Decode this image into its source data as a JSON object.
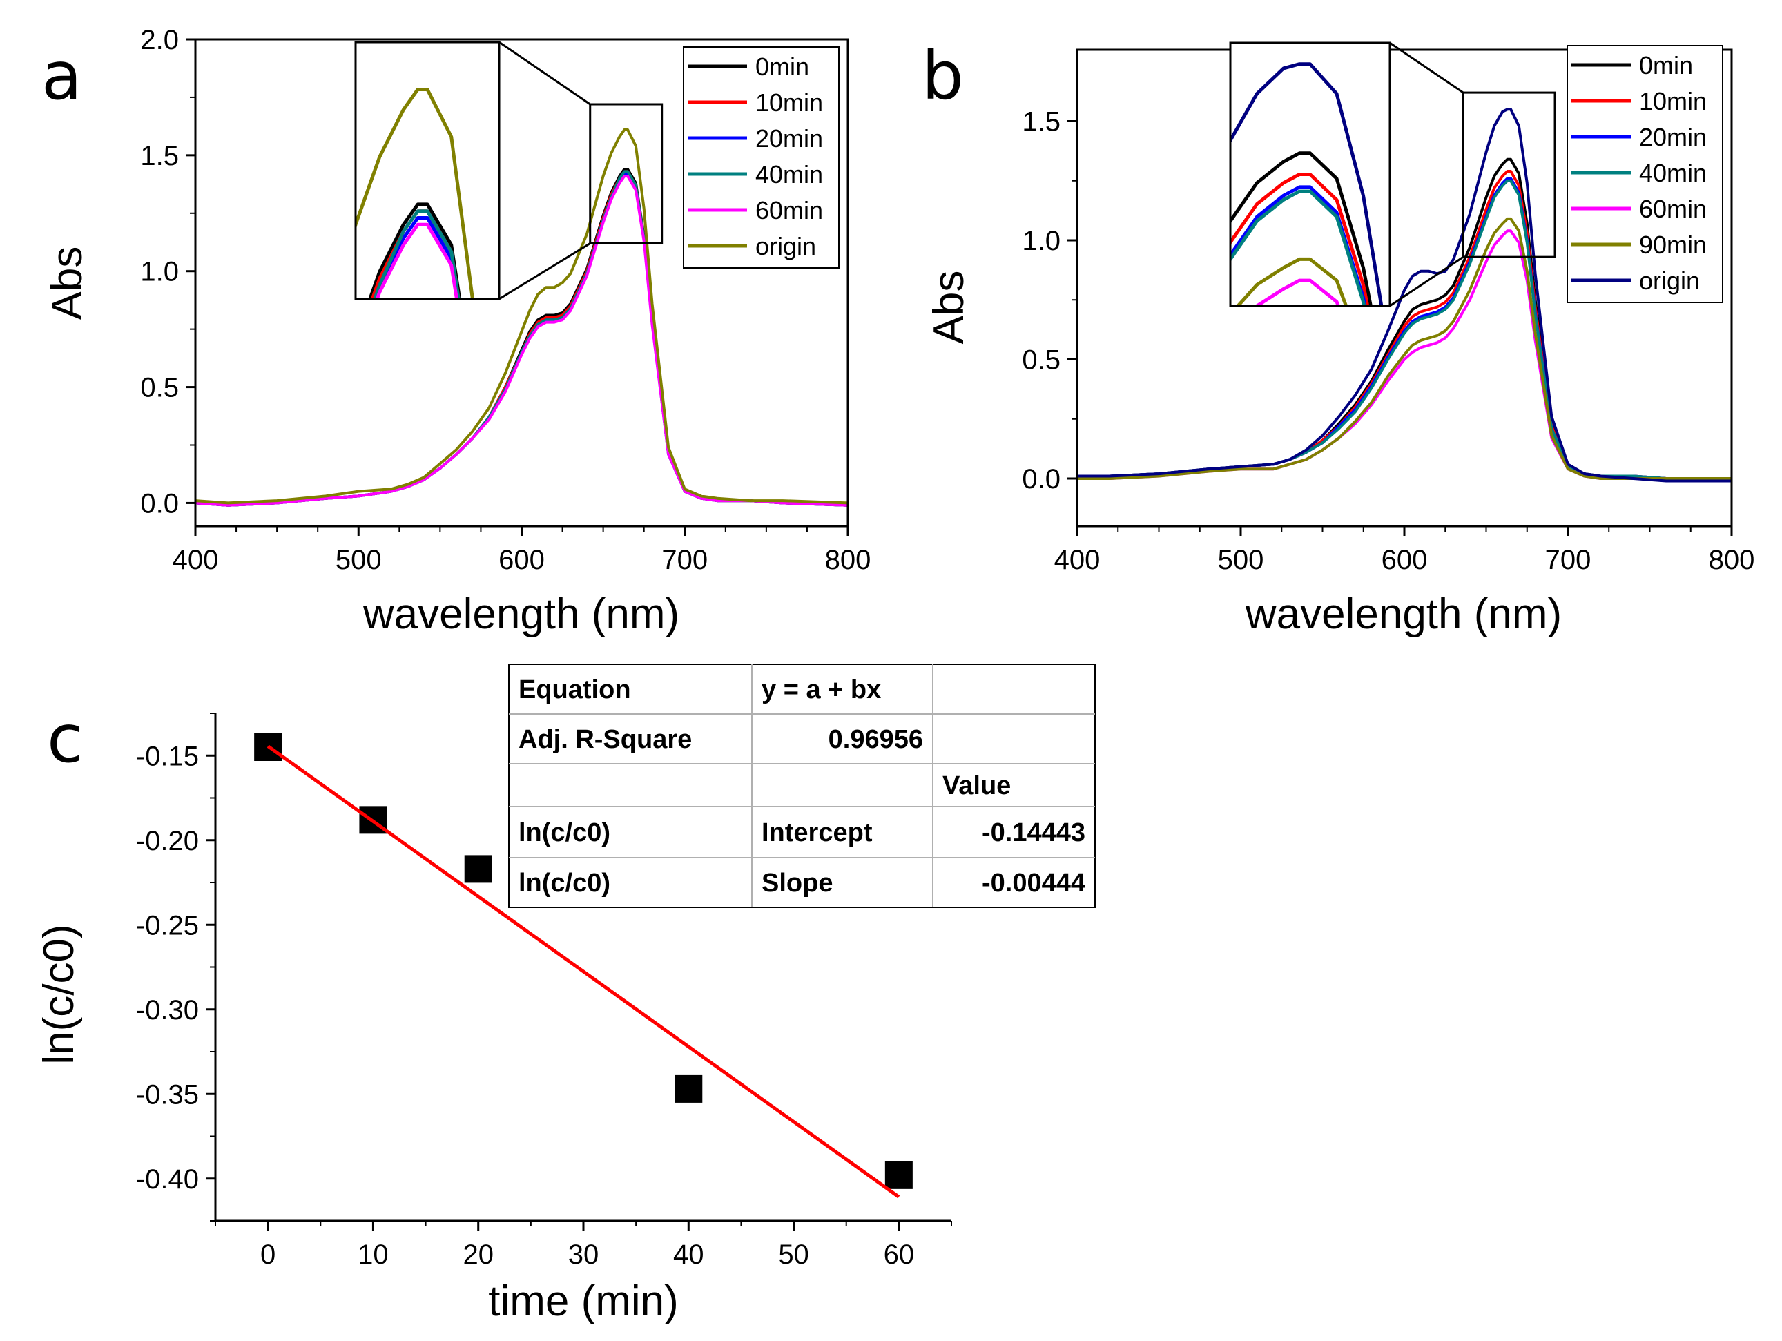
{
  "chart_data": [
    {
      "id": "a",
      "type": "line",
      "panel_label": "a",
      "title": "",
      "xlabel": "wavelength (nm)",
      "ylabel": "Abs",
      "xlim": [
        400,
        800
      ],
      "ylim": [
        -0.1,
        2.0
      ],
      "xticks": [
        400,
        500,
        600,
        700,
        800
      ],
      "yticks": [
        0.0,
        0.5,
        1.0,
        1.5,
        2.0
      ],
      "ytick_labels": [
        "0.0",
        "0.5",
        "1.0",
        "1.5",
        "2.0"
      ],
      "grid": false,
      "legend_position": "top-right",
      "x": [
        400,
        420,
        450,
        480,
        500,
        520,
        530,
        540,
        550,
        560,
        570,
        580,
        590,
        600,
        605,
        610,
        615,
        620,
        625,
        630,
        640,
        650,
        655,
        660,
        663,
        665,
        670,
        675,
        680,
        690,
        700,
        710,
        720,
        740,
        760,
        800
      ],
      "series": [
        {
          "name": "0min",
          "color": "#000000",
          "values": [
            0.0,
            -0.01,
            0.0,
            0.02,
            0.03,
            0.05,
            0.07,
            0.1,
            0.15,
            0.21,
            0.28,
            0.37,
            0.5,
            0.66,
            0.74,
            0.79,
            0.81,
            0.81,
            0.82,
            0.86,
            1.01,
            1.24,
            1.34,
            1.41,
            1.44,
            1.44,
            1.38,
            1.15,
            0.79,
            0.22,
            0.05,
            0.02,
            0.01,
            0.01,
            0.0,
            -0.01
          ]
        },
        {
          "name": "10min",
          "color": "#ff0000",
          "values": [
            0.0,
            -0.01,
            0.0,
            0.02,
            0.03,
            0.05,
            0.07,
            0.1,
            0.15,
            0.21,
            0.28,
            0.37,
            0.5,
            0.65,
            0.73,
            0.78,
            0.8,
            0.8,
            0.81,
            0.85,
            1.0,
            1.23,
            1.33,
            1.4,
            1.43,
            1.43,
            1.37,
            1.14,
            0.79,
            0.22,
            0.05,
            0.02,
            0.01,
            0.01,
            0.0,
            -0.01
          ]
        },
        {
          "name": "20min",
          "color": "#0000ff",
          "values": [
            0.0,
            -0.01,
            0.0,
            0.02,
            0.03,
            0.05,
            0.07,
            0.1,
            0.15,
            0.21,
            0.28,
            0.37,
            0.49,
            0.65,
            0.72,
            0.77,
            0.79,
            0.79,
            0.8,
            0.84,
            0.99,
            1.22,
            1.32,
            1.39,
            1.42,
            1.42,
            1.36,
            1.14,
            0.78,
            0.21,
            0.05,
            0.02,
            0.01,
            0.01,
            0.0,
            -0.01
          ]
        },
        {
          "name": "40min",
          "color": "#008080",
          "values": [
            0.0,
            -0.01,
            0.0,
            0.02,
            0.03,
            0.05,
            0.07,
            0.1,
            0.15,
            0.21,
            0.28,
            0.37,
            0.49,
            0.65,
            0.72,
            0.77,
            0.79,
            0.79,
            0.8,
            0.84,
            0.99,
            1.22,
            1.32,
            1.4,
            1.43,
            1.43,
            1.37,
            1.14,
            0.78,
            0.21,
            0.05,
            0.02,
            0.01,
            0.01,
            0.0,
            -0.01
          ]
        },
        {
          "name": "60min",
          "color": "#ff00ff",
          "values": [
            0.0,
            -0.01,
            0.0,
            0.02,
            0.03,
            0.05,
            0.07,
            0.1,
            0.15,
            0.21,
            0.28,
            0.36,
            0.48,
            0.64,
            0.71,
            0.76,
            0.78,
            0.78,
            0.79,
            0.83,
            0.98,
            1.21,
            1.31,
            1.38,
            1.41,
            1.41,
            1.35,
            1.13,
            0.77,
            0.21,
            0.05,
            0.02,
            0.01,
            0.01,
            0.0,
            -0.01
          ]
        },
        {
          "name": "origin",
          "color": "#808000",
          "values": [
            0.01,
            0.0,
            0.01,
            0.03,
            0.05,
            0.06,
            0.08,
            0.11,
            0.17,
            0.23,
            0.31,
            0.41,
            0.56,
            0.74,
            0.83,
            0.9,
            0.93,
            0.93,
            0.95,
            0.99,
            1.16,
            1.41,
            1.51,
            1.58,
            1.61,
            1.61,
            1.54,
            1.27,
            0.86,
            0.24,
            0.06,
            0.03,
            0.02,
            0.01,
            0.01,
            0.0
          ]
        }
      ],
      "inset": {
        "xlim": [
          650,
          680
        ],
        "ylim": [
          1.3,
          1.68
        ],
        "x_range_box": [
          642,
          686
        ],
        "y_range_box": [
          1.12,
          1.72
        ]
      }
    },
    {
      "id": "b",
      "type": "line",
      "panel_label": "b",
      "title": "",
      "xlabel": "wavelength (nm)",
      "ylabel": "Abs",
      "xlim": [
        400,
        800
      ],
      "ylim": [
        -0.2,
        1.8
      ],
      "xticks": [
        400,
        500,
        600,
        700,
        800
      ],
      "yticks": [
        0.0,
        0.5,
        1.0,
        1.5
      ],
      "ytick_labels": [
        "0.0",
        "0.5",
        "1.0",
        "1.5"
      ],
      "grid": false,
      "legend_position": "top-right",
      "x": [
        400,
        420,
        450,
        480,
        500,
        520,
        530,
        540,
        550,
        560,
        570,
        580,
        590,
        600,
        605,
        610,
        615,
        620,
        625,
        630,
        640,
        650,
        655,
        660,
        663,
        665,
        670,
        675,
        680,
        690,
        700,
        710,
        720,
        740,
        760,
        800
      ],
      "series": [
        {
          "name": "0min",
          "color": "#000000",
          "values": [
            0.01,
            0.01,
            0.02,
            0.04,
            0.05,
            0.06,
            0.08,
            0.11,
            0.16,
            0.23,
            0.31,
            0.41,
            0.54,
            0.66,
            0.71,
            0.73,
            0.74,
            0.75,
            0.77,
            0.81,
            0.97,
            1.18,
            1.27,
            1.32,
            1.34,
            1.34,
            1.28,
            1.07,
            0.75,
            0.23,
            0.05,
            0.02,
            0.01,
            0.01,
            0.0,
            0.0
          ]
        },
        {
          "name": "10min",
          "color": "#ff0000",
          "values": [
            0.01,
            0.01,
            0.02,
            0.04,
            0.05,
            0.06,
            0.08,
            0.11,
            0.16,
            0.22,
            0.3,
            0.4,
            0.52,
            0.64,
            0.68,
            0.7,
            0.71,
            0.72,
            0.74,
            0.78,
            0.93,
            1.13,
            1.22,
            1.27,
            1.29,
            1.29,
            1.23,
            1.03,
            0.72,
            0.22,
            0.05,
            0.02,
            0.01,
            0.01,
            0.0,
            0.0
          ]
        },
        {
          "name": "20min",
          "color": "#0000ff",
          "values": [
            0.01,
            0.01,
            0.02,
            0.04,
            0.05,
            0.06,
            0.08,
            0.11,
            0.15,
            0.22,
            0.29,
            0.39,
            0.51,
            0.62,
            0.66,
            0.68,
            0.69,
            0.7,
            0.72,
            0.76,
            0.91,
            1.1,
            1.19,
            1.24,
            1.26,
            1.26,
            1.2,
            1.0,
            0.7,
            0.21,
            0.05,
            0.02,
            0.01,
            0.01,
            0.0,
            0.0
          ]
        },
        {
          "name": "40min",
          "color": "#008080",
          "values": [
            0.01,
            0.01,
            0.02,
            0.04,
            0.05,
            0.06,
            0.08,
            0.11,
            0.15,
            0.21,
            0.28,
            0.38,
            0.5,
            0.61,
            0.65,
            0.67,
            0.68,
            0.69,
            0.71,
            0.75,
            0.9,
            1.09,
            1.18,
            1.23,
            1.25,
            1.25,
            1.19,
            0.99,
            0.69,
            0.21,
            0.05,
            0.02,
            0.01,
            0.01,
            0.0,
            0.0
          ]
        },
        {
          "name": "60min",
          "color": "#ff00ff",
          "values": [
            0.0,
            0.0,
            0.01,
            0.03,
            0.04,
            0.04,
            0.06,
            0.08,
            0.12,
            0.17,
            0.23,
            0.31,
            0.41,
            0.5,
            0.53,
            0.55,
            0.56,
            0.57,
            0.59,
            0.63,
            0.75,
            0.91,
            0.98,
            1.02,
            1.04,
            1.04,
            0.99,
            0.83,
            0.58,
            0.17,
            0.04,
            0.01,
            0.0,
            0.0,
            0.0,
            0.0
          ]
        },
        {
          "name": "90min",
          "color": "#808000",
          "values": [
            0.0,
            0.0,
            0.01,
            0.03,
            0.04,
            0.04,
            0.06,
            0.08,
            0.12,
            0.17,
            0.24,
            0.32,
            0.43,
            0.52,
            0.56,
            0.58,
            0.59,
            0.6,
            0.62,
            0.66,
            0.79,
            0.96,
            1.03,
            1.07,
            1.09,
            1.09,
            1.04,
            0.87,
            0.61,
            0.18,
            0.04,
            0.01,
            0.0,
            0.0,
            0.0,
            0.0
          ]
        },
        {
          "name": "origin",
          "color": "#000080",
          "values": [
            0.01,
            0.01,
            0.02,
            0.04,
            0.05,
            0.06,
            0.08,
            0.12,
            0.18,
            0.26,
            0.35,
            0.46,
            0.62,
            0.79,
            0.85,
            0.87,
            0.87,
            0.86,
            0.87,
            0.92,
            1.11,
            1.37,
            1.48,
            1.54,
            1.55,
            1.55,
            1.48,
            1.24,
            0.86,
            0.26,
            0.06,
            0.02,
            0.01,
            0.0,
            -0.01,
            -0.01
          ]
        }
      ],
      "inset": {
        "xlim": [
          650,
          680
        ],
        "ylim": [
          0.98,
          1.6
        ],
        "x_range_box": [
          636,
          692
        ],
        "y_range_box": [
          0.93,
          1.62
        ]
      }
    },
    {
      "id": "c",
      "type": "scatter",
      "panel_label": "c",
      "title": "",
      "xlabel": "time (min)",
      "ylabel": "ln(c/c0)",
      "xlim": [
        -5,
        65
      ],
      "ylim": [
        -0.425,
        -0.125
      ],
      "xticks": [
        0,
        10,
        20,
        30,
        40,
        50,
        60
      ],
      "yticks": [
        -0.15,
        -0.2,
        -0.25,
        -0.3,
        -0.35,
        -0.4
      ],
      "ytick_labels": [
        "-0.15",
        "-0.20",
        "-0.25",
        "-0.30",
        "-0.35",
        "-0.40"
      ],
      "grid": false,
      "points": {
        "x": [
          0,
          10,
          20,
          40,
          60
        ],
        "y": [
          -0.145,
          -0.188,
          -0.217,
          -0.347,
          -0.398
        ],
        "color": "#000000"
      },
      "fit_line": {
        "color": "#ff0000",
        "x": [
          0,
          60
        ],
        "y": [
          -0.14443,
          -0.41083
        ]
      },
      "fit_table": {
        "rows": [
          [
            "Equation",
            "y = a + bx",
            ""
          ],
          [
            "Adj. R-Square",
            "0.96956",
            ""
          ],
          [
            "",
            "",
            "Value"
          ],
          [
            "ln(c/c0)",
            "Intercept",
            "-0.14443"
          ],
          [
            "ln(c/c0)",
            "Slope",
            "-0.00444"
          ]
        ]
      }
    }
  ]
}
